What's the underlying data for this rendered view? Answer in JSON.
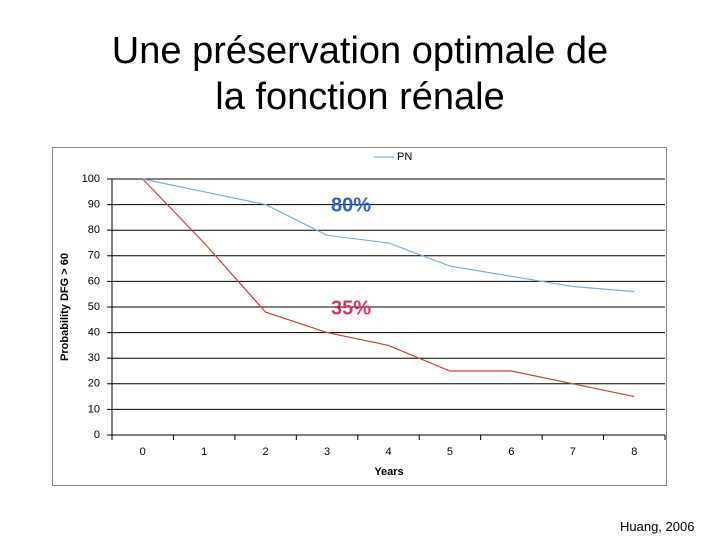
{
  "chart_data": {
    "type": "line",
    "title": [
      "Une préservation optimale de",
      "la fonction rénale"
    ],
    "x_label": "Years",
    "y_label": "Probability DFG > 60",
    "categories": [
      "0",
      "1",
      "2",
      "3",
      "4",
      "5",
      "6",
      "7",
      "8"
    ],
    "series": [
      {
        "name": "PN",
        "color": "#7aafdc",
        "values": [
          100,
          95,
          90,
          78,
          75,
          66,
          62,
          58,
          56
        ]
      },
      {
        "color": "#c8413c",
        "values": [
          100,
          75,
          48,
          40,
          35,
          25,
          25,
          20,
          15
        ]
      }
    ],
    "annotations": [
      {
        "text": "80%",
        "color": "#2e63c4"
      },
      {
        "text": "35%",
        "color": "#d6365f"
      }
    ],
    "ylim": [
      0,
      100
    ],
    "yticks": [
      0,
      10,
      20,
      30,
      40,
      50,
      60,
      70,
      80,
      90,
      100
    ],
    "grid": true,
    "legend": "top",
    "source": "Huang, 2006"
  }
}
